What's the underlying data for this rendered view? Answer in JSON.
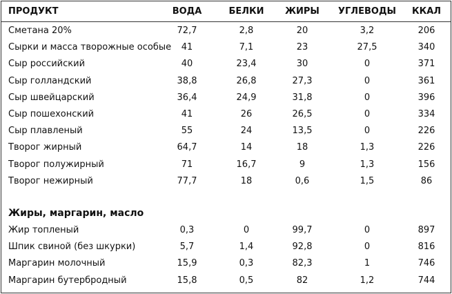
{
  "table": {
    "columns": [
      "ПРОДУКТ",
      "ВОДА",
      "БЕЛКИ",
      "ЖИРЫ",
      "УГЛЕВОДЫ",
      "ККАЛ"
    ],
    "rows": [
      [
        "Сметана 20%",
        "72,7",
        "2,8",
        "20",
        "3,2",
        "206"
      ],
      [
        "Сырки и масса творожные особые",
        "41",
        "7,1",
        "23",
        "27,5",
        "340"
      ],
      [
        "Сыр российский",
        "40",
        "23,4",
        "30",
        "0",
        "371"
      ],
      [
        "Сыр голландский",
        "38,8",
        "26,8",
        "27,3",
        "0",
        "361"
      ],
      [
        "Сыр швейцарский",
        "36,4",
        "24,9",
        "31,8",
        "0",
        "396"
      ],
      [
        "Сыр пошехонский",
        "41",
        "26",
        "26,5",
        "0",
        "334"
      ],
      [
        "Сыр плавленый",
        "55",
        "24",
        "13,5",
        "0",
        "226"
      ],
      [
        "Творог жирный",
        "64,7",
        "14",
        "18",
        "1,3",
        "226"
      ],
      [
        "Творог полужирный",
        "71",
        "16,7",
        "9",
        "1,3",
        "156"
      ],
      [
        "Творог нежирный",
        "77,7",
        "18",
        "0,6",
        "1,5",
        "86"
      ]
    ]
  },
  "section": {
    "title": "Жиры, маргарин, масло",
    "rows": [
      [
        "Жир топленый",
        "0,3",
        "0",
        "99,7",
        "0",
        "897"
      ],
      [
        "Шпик свиной (без шкурки)",
        "5,7",
        "1,4",
        "92,8",
        "0",
        "816"
      ],
      [
        "Маргарин молочный",
        "15,9",
        "0,3",
        "82,3",
        "1",
        "746"
      ],
      [
        "Маргарин бутербродный",
        "15,8",
        "0,5",
        "82",
        "1,2",
        "744"
      ]
    ]
  }
}
